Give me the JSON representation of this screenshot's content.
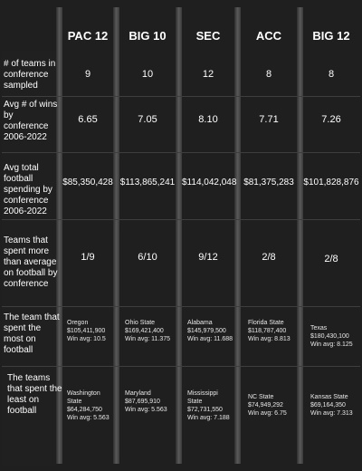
{
  "conferences": [
    "PAC 12",
    "BIG 10",
    "SEC",
    "ACC",
    "BIG 12"
  ],
  "row_labels": {
    "teams_sampled": "# of teams in conference sampled",
    "avg_wins": "Avg # of wins by conference 2006-2022",
    "avg_spending": "Avg total football spending by conference 2006-2022",
    "above_avg": "Teams that spent more than average on football by conference",
    "most": "The team that spent the most on football",
    "least": "The teams that spent the least on football"
  },
  "teams_sampled": [
    "9",
    "10",
    "12",
    "8",
    "8"
  ],
  "avg_wins": [
    "6.65",
    "7.05",
    "8.10",
    "7.71",
    "7.26"
  ],
  "avg_spending": [
    "$85,350,428",
    "$113,865,241",
    "$114,042,048",
    "$81,375,283",
    "$101,828,876"
  ],
  "above_avg": [
    "1/9",
    "6/10",
    "9/12",
    "2/8",
    "2/8"
  ],
  "most": [
    {
      "team": "Oregon",
      "amount": "$105,411,900",
      "win": "Win avg: 10.5"
    },
    {
      "team": "Ohio State",
      "amount": "$169,421,400",
      "win": "Win avg: 11.375"
    },
    {
      "team": "Alabama",
      "amount": "$145,979,500",
      "win": "Win avg: 11.688"
    },
    {
      "team": "Florida State",
      "amount": "$118,787,400",
      "win": "Win avg: 8.813"
    },
    {
      "team": "Texas",
      "amount": "$180,430,100",
      "win": "Win avg: 8.125"
    }
  ],
  "least": [
    {
      "team": "Washington State",
      "amount": "$64,284,750",
      "win": "Win avg: 5.563"
    },
    {
      "team": "Maryland",
      "amount": "$87,695,910",
      "win": "Win avg: 5.563"
    },
    {
      "team": "Mississippi State",
      "amount": "$72,731,550",
      "win": "Win avg: 7.188"
    },
    {
      "team": "NC State",
      "amount": "$74,949,292",
      "win": "Win avg: 6.75"
    },
    {
      "team": "Kansas State",
      "amount": "$69,164,350",
      "win": "Win avg: 7.313"
    }
  ]
}
